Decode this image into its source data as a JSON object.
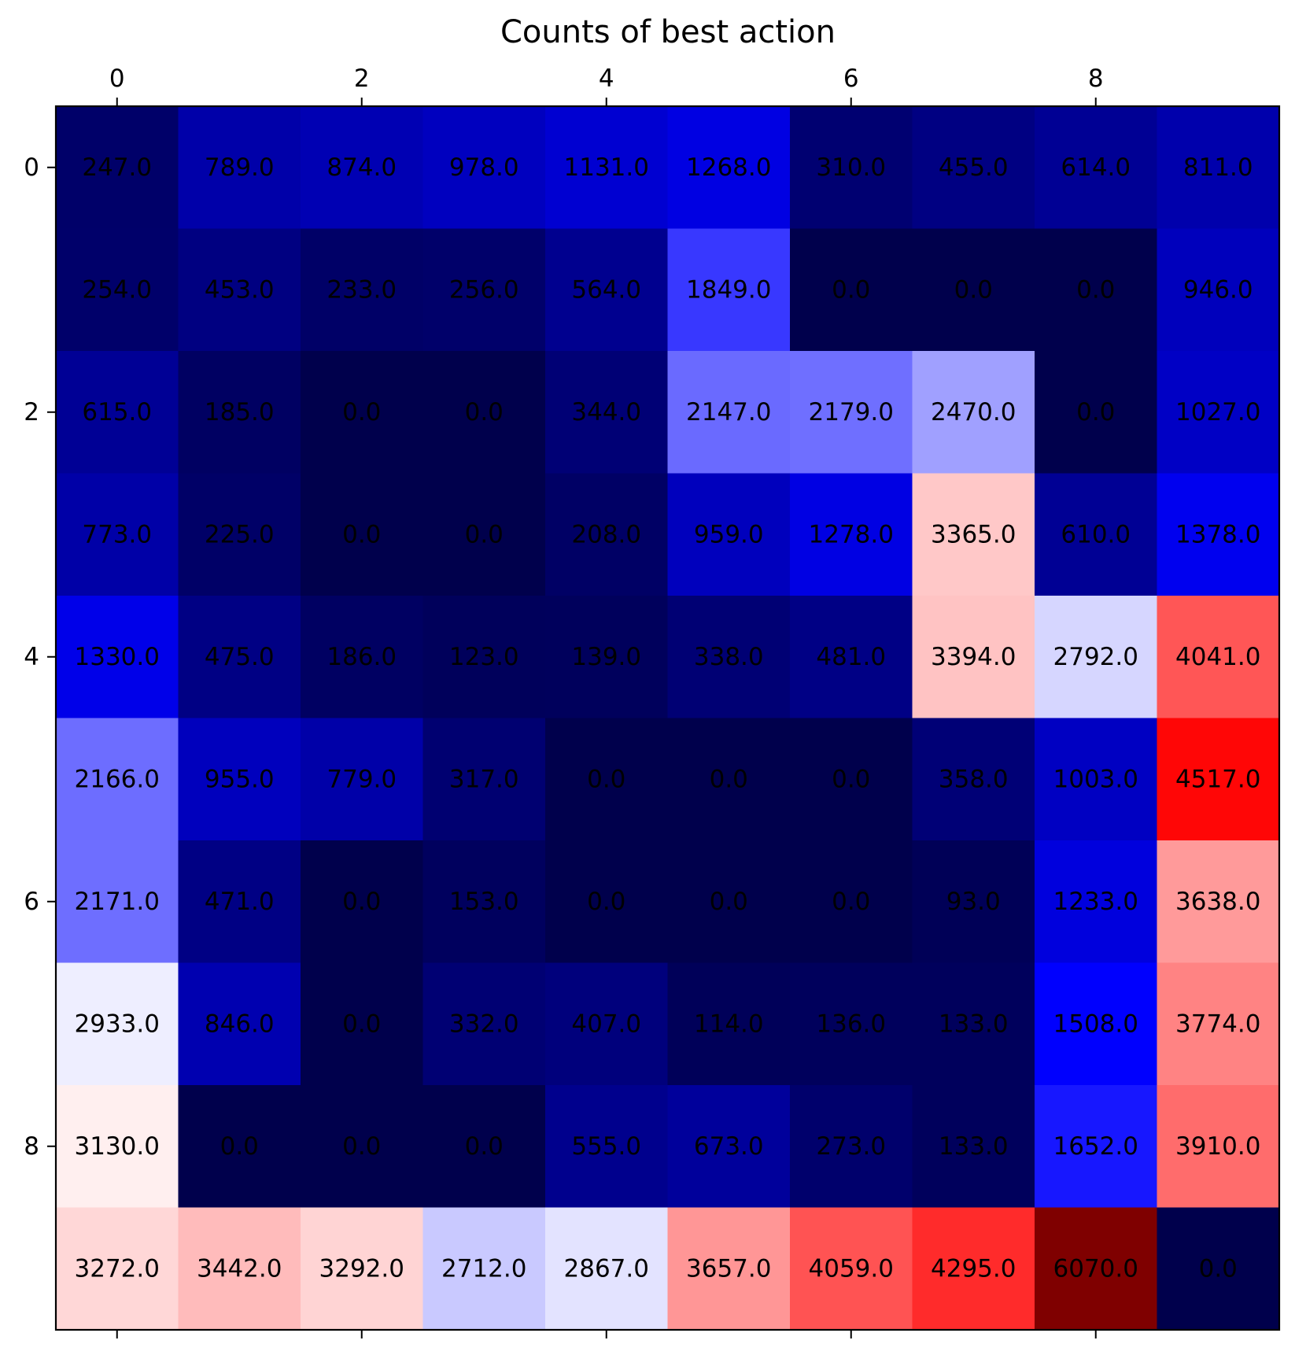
{
  "chart_data": {
    "type": "heatmap",
    "title": "Counts of best action",
    "xlabel": "",
    "ylabel": "",
    "colormap": "seismic",
    "vmin": 0,
    "vmax": 6070,
    "x_ticks": [
      "0",
      "2",
      "4",
      "6",
      "8"
    ],
    "y_ticks": [
      "0",
      "2",
      "4",
      "6",
      "8"
    ],
    "x_tick_positions": [
      0,
      2,
      4,
      6,
      8
    ],
    "y_tick_positions": [
      0,
      2,
      4,
      6,
      8
    ],
    "x_axis_position": "top",
    "grid": false,
    "rows": 10,
    "cols": 10,
    "values": [
      [
        247,
        789,
        874,
        978,
        1131,
        1268,
        310,
        455,
        614,
        811
      ],
      [
        254,
        453,
        233,
        256,
        564,
        1849,
        0,
        0,
        0,
        946
      ],
      [
        615,
        185,
        0,
        0,
        344,
        2147,
        2179,
        2470,
        0,
        1027
      ],
      [
        773,
        225,
        0,
        0,
        208,
        959,
        1278,
        3365,
        610,
        1378
      ],
      [
        1330,
        475,
        186,
        123,
        139,
        338,
        481,
        3394,
        2792,
        4041
      ],
      [
        2166,
        955,
        779,
        317,
        0,
        0,
        0,
        358,
        1003,
        4517
      ],
      [
        2171,
        471,
        0,
        153,
        0,
        0,
        0,
        93,
        1233,
        3638
      ],
      [
        2933,
        846,
        0,
        332,
        407,
        114,
        136,
        133,
        1508,
        3774
      ],
      [
        3130,
        0,
        0,
        0,
        555,
        673,
        273,
        133,
        1652,
        3910
      ],
      [
        3272,
        3442,
        3292,
        2712,
        2867,
        3657,
        4059,
        4295,
        6070,
        0
      ]
    ],
    "value_labels": [
      [
        "247.0",
        "789.0",
        "874.0",
        "978.0",
        "1131.0",
        "1268.0",
        "310.0",
        "455.0",
        "614.0",
        "811.0"
      ],
      [
        "254.0",
        "453.0",
        "233.0",
        "256.0",
        "564.0",
        "1849.0",
        "0.0",
        "0.0",
        "0.0",
        "946.0"
      ],
      [
        "615.0",
        "185.0",
        "0.0",
        "0.0",
        "344.0",
        "2147.0",
        "2179.0",
        "2470.0",
        "0.0",
        "1027.0"
      ],
      [
        "773.0",
        "225.0",
        "0.0",
        "0.0",
        "208.0",
        "959.0",
        "1278.0",
        "3365.0",
        "610.0",
        "1378.0"
      ],
      [
        "1330.0",
        "475.0",
        "186.0",
        "123.0",
        "139.0",
        "338.0",
        "481.0",
        "3394.0",
        "2792.0",
        "4041.0"
      ],
      [
        "2166.0",
        "955.0",
        "779.0",
        "317.0",
        "0.0",
        "0.0",
        "0.0",
        "358.0",
        "1003.0",
        "4517.0"
      ],
      [
        "2171.0",
        "471.0",
        "0.0",
        "153.0",
        "0.0",
        "0.0",
        "0.0",
        "93.0",
        "1233.0",
        "3638.0"
      ],
      [
        "2933.0",
        "846.0",
        "0.0",
        "332.0",
        "407.0",
        "114.0",
        "136.0",
        "133.0",
        "1508.0",
        "3774.0"
      ],
      [
        "3130.0",
        "0.0",
        "0.0",
        "0.0",
        "555.0",
        "673.0",
        "273.0",
        "133.0",
        "1652.0",
        "3910.0"
      ],
      [
        "3272.0",
        "3442.0",
        "3292.0",
        "2712.0",
        "2867.0",
        "3657.0",
        "4059.0",
        "4295.0",
        "6070.0",
        "0.0"
      ]
    ]
  }
}
